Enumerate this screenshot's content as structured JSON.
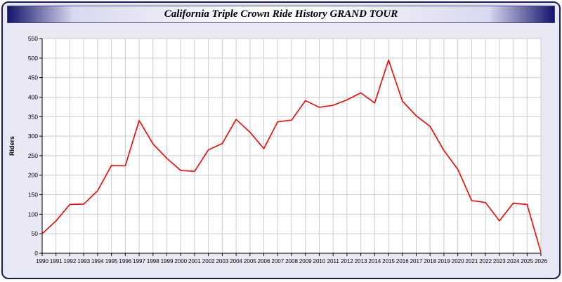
{
  "window": {
    "title": "California Triple Crown Ride History GRAND TOUR"
  },
  "chart_data": {
    "type": "line",
    "title": "California Triple Crown Ride History GRAND TOUR",
    "xlabel": "",
    "ylabel": "Riders",
    "ylim": [
      0,
      550
    ],
    "ytick_step": 50,
    "grid": true,
    "legend_position": "none",
    "x": [
      1990,
      1991,
      1992,
      1993,
      1994,
      1995,
      1996,
      1997,
      1998,
      1999,
      2000,
      2001,
      2002,
      2003,
      2004,
      2005,
      2006,
      2007,
      2008,
      2009,
      2010,
      2011,
      2012,
      2013,
      2014,
      2015,
      2016,
      2017,
      2018,
      2019,
      2020,
      2021,
      2022,
      2023,
      2024,
      2025,
      2026
    ],
    "series": [
      {
        "name": "Riders",
        "color": "#ff0000",
        "values": [
          50,
          83,
          125,
          126,
          160,
          225,
          224,
          340,
          280,
          243,
          212,
          210,
          265,
          281,
          343,
          310,
          268,
          337,
          341,
          391,
          374,
          379,
          393,
          411,
          385,
          495,
          390,
          352,
          325,
          263,
          215,
          135,
          130,
          83,
          128,
          125,
          2
        ]
      }
    ],
    "colors": {
      "window_bg": "#e9e9f5",
      "plot_bg": "#ffffff",
      "grid": "#cccccc",
      "axis": "#000000",
      "line": "#ff0000",
      "window_border": "#1b1b5e",
      "title_bar_edge": "#14146e",
      "title_bar_center": "#ffffff",
      "title_text": "#000000"
    }
  }
}
